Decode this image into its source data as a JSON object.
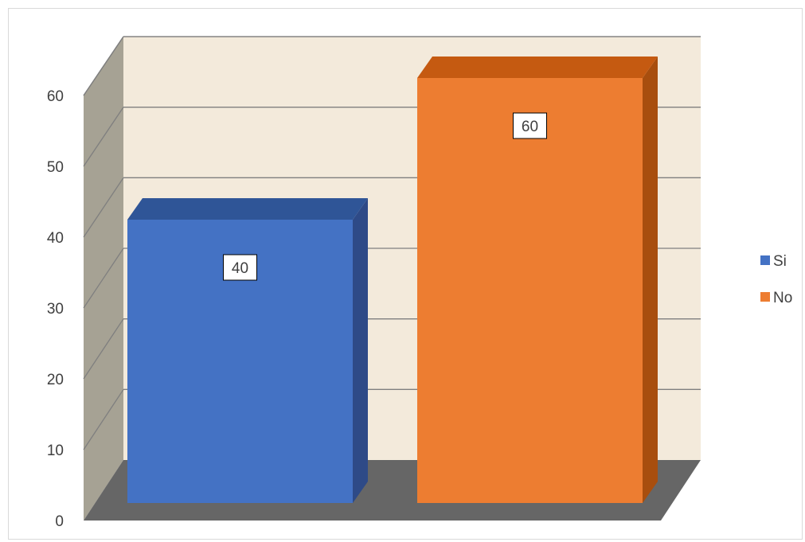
{
  "chart_data": {
    "type": "bar",
    "categories": [
      ""
    ],
    "series": [
      {
        "name": "Si",
        "values": [
          40
        ]
      },
      {
        "name": "No",
        "values": [
          60
        ]
      }
    ],
    "title": "",
    "xlabel": "",
    "ylabel": "",
    "ylim": [
      0,
      60
    ],
    "yticks": [
      0,
      10,
      20,
      30,
      40,
      50,
      60
    ],
    "grid": true,
    "three_d": true,
    "legend": "right",
    "data_labels": [
      "40",
      "60"
    ],
    "colors": {
      "series": [
        "#4472C4",
        "#ED7D31"
      ],
      "series_top": [
        "#2F5597",
        "#C55A11"
      ],
      "series_side": [
        "#2E4A87",
        "#A84E0E"
      ],
      "back_wall": "#F3EADB",
      "side_wall": "#A6A294",
      "floor": "#666666",
      "gridline": "#7F7F7F"
    }
  }
}
